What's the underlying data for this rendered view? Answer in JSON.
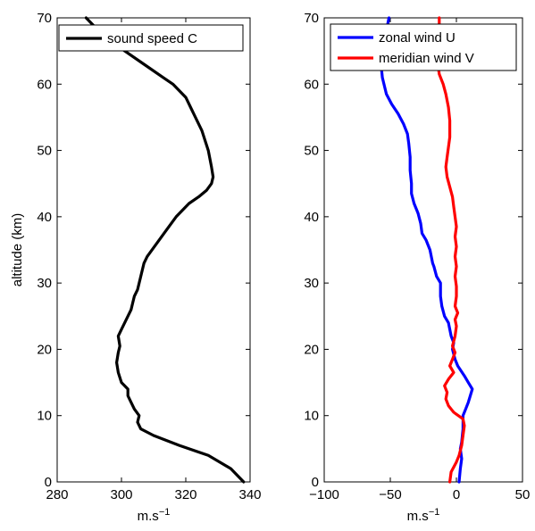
{
  "chart_data": [
    {
      "type": "line",
      "title": "",
      "xlabel": "m.s",
      "xlabel_exponent": "−1",
      "ylabel": "altitude (km)",
      "xlim": [
        280,
        340
      ],
      "ylim": [
        0,
        70
      ],
      "xticks": [
        280,
        300,
        320,
        340
      ],
      "xtick_labels": [
        "280",
        "300",
        "320",
        "340"
      ],
      "yticks": [
        0,
        10,
        20,
        30,
        40,
        50,
        60,
        70
      ],
      "ytick_labels": [
        "0",
        "10",
        "20",
        "30",
        "40",
        "50",
        "60",
        "70"
      ],
      "grid": false,
      "legend_position": "top-right",
      "series": [
        {
          "name": "sound speed C",
          "color": "#000000",
          "points": [
            [
              338,
              0
            ],
            [
              334,
              2
            ],
            [
              327,
              4
            ],
            [
              318,
              5.5
            ],
            [
              310,
              7
            ],
            [
              306,
              8
            ],
            [
              305,
              9
            ],
            [
              305.5,
              10
            ],
            [
              304,
              11
            ],
            [
              303,
              12
            ],
            [
              302,
              13
            ],
            [
              302,
              14
            ],
            [
              300,
              15
            ],
            [
              299,
              16.5
            ],
            [
              298.5,
              18
            ],
            [
              299,
              19.5
            ],
            [
              299.5,
              20.5
            ],
            [
              299,
              22
            ],
            [
              300,
              23
            ],
            [
              301,
              24
            ],
            [
              302,
              25
            ],
            [
              303,
              26
            ],
            [
              303.5,
              27
            ],
            [
              304,
              28
            ],
            [
              305,
              29
            ],
            [
              306,
              31
            ],
            [
              307,
              33
            ],
            [
              308,
              34
            ],
            [
              311,
              36
            ],
            [
              314,
              38
            ],
            [
              317,
              40
            ],
            [
              321,
              42
            ],
            [
              324,
              43
            ],
            [
              326.5,
              44
            ],
            [
              328,
              45
            ],
            [
              328.5,
              46
            ],
            [
              328,
              47.5
            ],
            [
              327,
              50
            ],
            [
              325,
              53
            ],
            [
              322,
              56
            ],
            [
              320,
              58
            ],
            [
              316,
              60
            ],
            [
              313,
              61
            ],
            [
              307,
              63
            ],
            [
              301,
              65
            ],
            [
              296,
              67
            ],
            [
              292,
              68.5
            ],
            [
              289,
              70
            ]
          ]
        }
      ]
    },
    {
      "type": "line",
      "title": "",
      "xlabel": "m.s",
      "xlabel_exponent": "−1",
      "ylabel": "",
      "xlim": [
        -100,
        50
      ],
      "ylim": [
        0,
        70
      ],
      "xticks": [
        -100,
        -50,
        0,
        50
      ],
      "xtick_labels": [
        "−100",
        "−50",
        "0",
        "50"
      ],
      "yticks": [
        0,
        10,
        20,
        30,
        40,
        50,
        60,
        70
      ],
      "ytick_labels": [
        "0",
        "10",
        "20",
        "30",
        "40",
        "50",
        "60",
        "70"
      ],
      "grid": false,
      "legend_position": "top-right",
      "series": [
        {
          "name": "zonal wind U",
          "color": "#0000ff",
          "points": [
            [
              2,
              0
            ],
            [
              3,
              2
            ],
            [
              4,
              3.5
            ],
            [
              3,
              5
            ],
            [
              4,
              6
            ],
            [
              5,
              8
            ],
            [
              5,
              10
            ],
            [
              7,
              11
            ],
            [
              9,
              12
            ],
            [
              12,
              14
            ],
            [
              9,
              15
            ],
            [
              6,
              16
            ],
            [
              1,
              17.5
            ],
            [
              -1,
              18.5
            ],
            [
              -3,
              20
            ],
            [
              -2,
              21
            ],
            [
              -4,
              22
            ],
            [
              -6,
              24
            ],
            [
              -9,
              25
            ],
            [
              -11,
              26.5
            ],
            [
              -12,
              28
            ],
            [
              -12,
              30
            ],
            [
              -15,
              31
            ],
            [
              -17,
              32.5
            ],
            [
              -18,
              33
            ],
            [
              -19,
              34
            ],
            [
              -20,
              35
            ],
            [
              -23,
              36.5
            ],
            [
              -26,
              37.5
            ],
            [
              -27,
              39
            ],
            [
              -29,
              40.5
            ],
            [
              -30,
              41
            ],
            [
              -32,
              42
            ],
            [
              -34,
              43.5
            ],
            [
              -34,
              45
            ],
            [
              -35,
              47
            ],
            [
              -35,
              49
            ],
            [
              -36,
              51
            ],
            [
              -37,
              52.5
            ],
            [
              -40,
              54
            ],
            [
              -44,
              55.5
            ],
            [
              -49,
              57
            ],
            [
              -53,
              58.5
            ],
            [
              -56,
              61
            ],
            [
              -57,
              63
            ],
            [
              -56,
              65
            ],
            [
              -54,
              67
            ],
            [
              -52,
              69
            ],
            [
              -51,
              70
            ]
          ]
        },
        {
          "name": "meridian wind V",
          "color": "#ff0000",
          "points": [
            [
              -5,
              0
            ],
            [
              -4,
              1.5
            ],
            [
              0,
              3
            ],
            [
              2,
              4
            ],
            [
              4,
              5.5
            ],
            [
              5,
              7
            ],
            [
              6,
              8.5
            ],
            [
              5,
              9.5
            ],
            [
              -2,
              10.5
            ],
            [
              -6,
              11.5
            ],
            [
              -8,
              12.5
            ],
            [
              -7,
              13.5
            ],
            [
              -9,
              14.5
            ],
            [
              -6,
              15.5
            ],
            [
              -2,
              16.5
            ],
            [
              -5,
              17.5
            ],
            [
              -3,
              18.5
            ],
            [
              -1,
              19.5
            ],
            [
              -3,
              20.5
            ],
            [
              -1,
              22
            ],
            [
              0,
              23.5
            ],
            [
              -1,
              24.5
            ],
            [
              1,
              25.5
            ],
            [
              -1,
              26.5
            ],
            [
              0,
              28
            ],
            [
              0,
              29.5
            ],
            [
              -1,
              31
            ],
            [
              0,
              32.5
            ],
            [
              -1,
              34
            ],
            [
              0,
              35.5
            ],
            [
              -1,
              37
            ],
            [
              0,
              38.5
            ],
            [
              -1,
              40
            ],
            [
              -2,
              41.5
            ],
            [
              -3,
              43
            ],
            [
              -5,
              44.5
            ],
            [
              -7,
              46
            ],
            [
              -8,
              47.5
            ],
            [
              -7,
              49
            ],
            [
              -6,
              50.5
            ],
            [
              -5,
              52
            ],
            [
              -5,
              54.5
            ],
            [
              -6,
              56.5
            ],
            [
              -8,
              58.5
            ],
            [
              -10,
              60
            ],
            [
              -13,
              61.5
            ],
            [
              -14,
              63
            ],
            [
              -14,
              65
            ],
            [
              -13,
              66.5
            ],
            [
              -13,
              68
            ],
            [
              -13,
              70
            ]
          ]
        }
      ]
    }
  ]
}
